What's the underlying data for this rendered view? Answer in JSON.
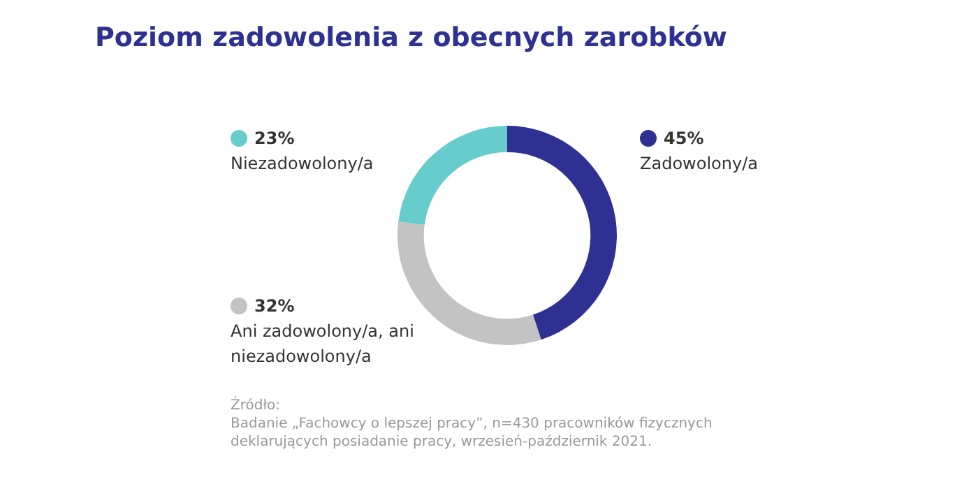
{
  "chart_data": {
    "type": "donut",
    "title": "Poziom zadowolenia z obecnych zarobków",
    "categories": [
      "Zadowolony/a",
      "Ani zadowolony/a, ani niezadowolony/a",
      "Niezadowolony/a"
    ],
    "values": [
      45,
      32,
      23
    ],
    "colors": [
      "#2e3192",
      "#c3c3c3",
      "#66cccc"
    ],
    "value_labels": [
      "45%",
      "32%",
      "23%"
    ],
    "legend": "left",
    "annotations": [
      "Źródło:",
      "Badanie „Fachowcy o lepszej pracy”, n=430 pracowników fizycznych deklarujących posiadanie pracy, wrzesień-październik 2021."
    ]
  }
}
